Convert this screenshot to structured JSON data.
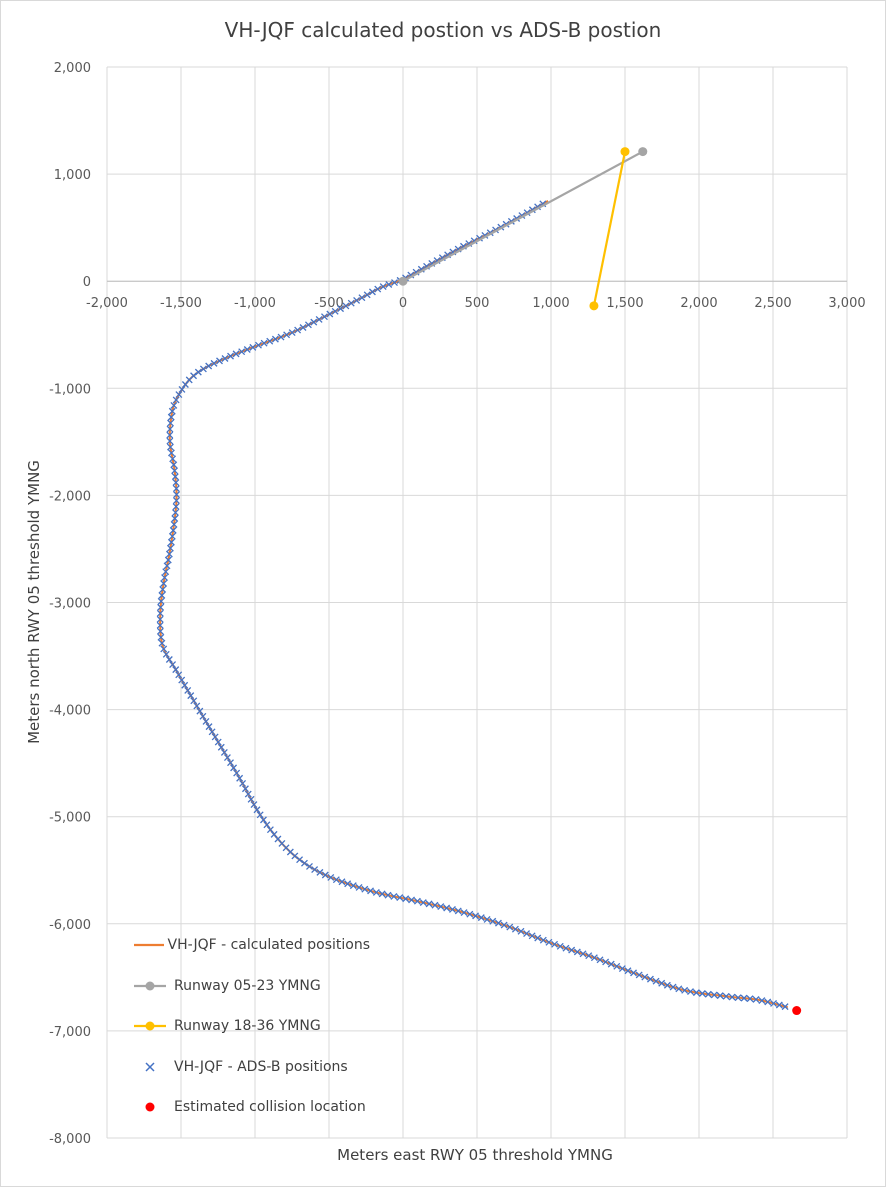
{
  "chart_data": {
    "type": "scatter",
    "title": "VH-JQF calculated postion vs ADS-B postion",
    "xlabel": "Meters east RWY 05 threshold YMNG",
    "ylabel": "Meters north RWY 05 threshold YMNG",
    "xlim": [
      -2000,
      3000
    ],
    "ylim": [
      -8000,
      2000
    ],
    "x_ticks": [
      "-2,000",
      "-1,500",
      "-1,000",
      "-500",
      "0",
      "500",
      "1,000",
      "1,500",
      "2,000",
      "2,500",
      "3,000"
    ],
    "y_ticks": [
      "2,000",
      "1,000",
      "0",
      "-1,000",
      "-2,000",
      "-3,000",
      "-4,000",
      "-5,000",
      "-6,000",
      "-7,000",
      "-8,000"
    ],
    "grid": true,
    "legend_position": "bottom-left",
    "series": [
      {
        "name": "VH-JQF - calculated positions",
        "kind": "line",
        "color": "#ed7d31",
        "points": [
          [
            980,
            750
          ],
          [
            800,
            610
          ],
          [
            600,
            460
          ],
          [
            400,
            320
          ],
          [
            200,
            170
          ],
          [
            0,
            20
          ],
          [
            -150,
            -60
          ],
          [
            -300,
            -170
          ],
          [
            -500,
            -310
          ],
          [
            -750,
            -480
          ],
          [
            -1000,
            -610
          ],
          [
            -1200,
            -720
          ],
          [
            -1350,
            -820
          ],
          [
            -1450,
            -930
          ],
          [
            -1530,
            -1100
          ],
          [
            -1565,
            -1260
          ],
          [
            -1575,
            -1500
          ],
          [
            -1545,
            -1750
          ],
          [
            -1530,
            -2000
          ],
          [
            -1545,
            -2250
          ],
          [
            -1580,
            -2560
          ],
          [
            -1615,
            -2800
          ],
          [
            -1640,
            -3100
          ],
          [
            -1625,
            -3400
          ],
          [
            -1530,
            -3640
          ],
          [
            -1400,
            -3950
          ],
          [
            -1250,
            -4300
          ],
          [
            -1100,
            -4650
          ],
          [
            -980,
            -4950
          ],
          [
            -850,
            -5200
          ],
          [
            -700,
            -5400
          ],
          [
            -500,
            -5560
          ],
          [
            -200,
            -5700
          ],
          [
            100,
            -5790
          ],
          [
            400,
            -5890
          ],
          [
            700,
            -6020
          ],
          [
            1000,
            -6180
          ],
          [
            1300,
            -6320
          ],
          [
            1600,
            -6480
          ],
          [
            1900,
            -6620
          ],
          [
            2200,
            -6680
          ],
          [
            2400,
            -6710
          ],
          [
            2600,
            -6780
          ]
        ]
      },
      {
        "name": "Runway 05-23 YMNG",
        "kind": "line-markers",
        "color": "#a5a5a5",
        "points": [
          [
            0,
            0
          ],
          [
            1620,
            1210
          ]
        ]
      },
      {
        "name": "Runway 18-36 YMNG",
        "kind": "line-markers",
        "color": "#ffc000",
        "points": [
          [
            1500,
            1210
          ],
          [
            1290,
            -230
          ]
        ]
      },
      {
        "name": "VH-JQF - ADS-B positions",
        "kind": "x-markers",
        "color": "#4472c4"
      },
      {
        "name": "Estimated collision location",
        "kind": "point",
        "color": "#ff0000",
        "points": [
          [
            2660,
            -6810
          ]
        ]
      }
    ]
  }
}
